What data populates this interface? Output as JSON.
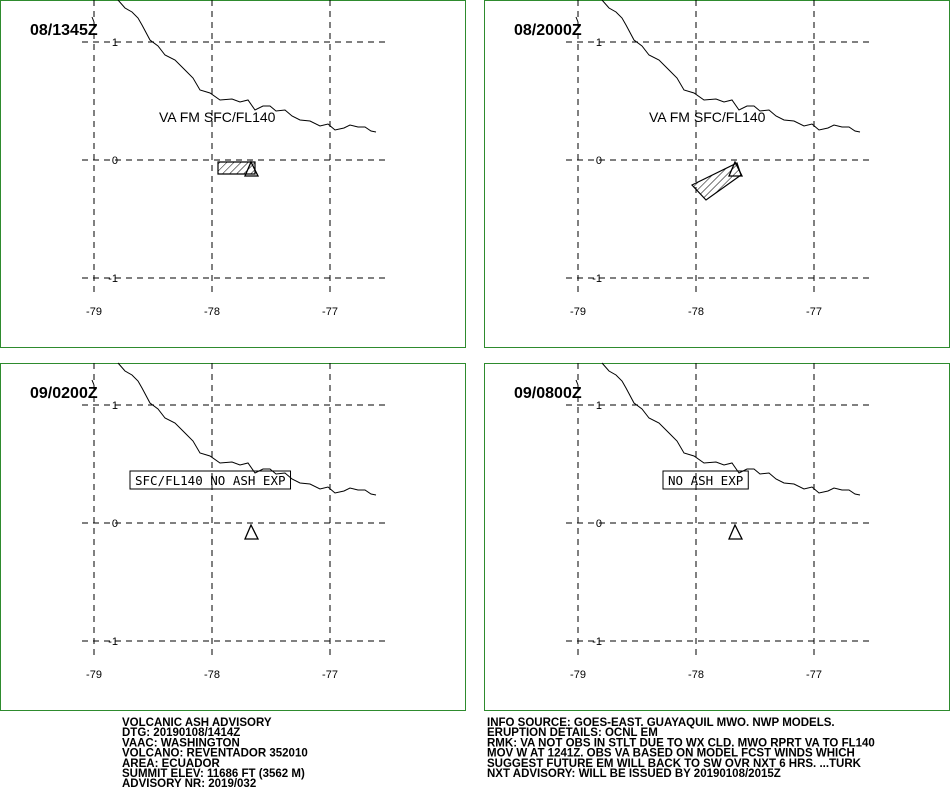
{
  "panels": [
    {
      "time": "08/1345Z",
      "label": "VA FM SFC/FL140"
    },
    {
      "time": "08/2000Z",
      "label": "VA FM SFC/FL140"
    },
    {
      "time": "09/0200Z",
      "label": "SFC/FL140 NO ASH EXP"
    },
    {
      "time": "09/0800Z",
      "label": "NO ASH EXP"
    }
  ],
  "lat_labels": [
    "1",
    "0",
    "-1"
  ],
  "lon_labels": [
    "-79",
    "-78",
    "-77"
  ],
  "advisory_left": [
    "VOLCANIC ASH ADVISORY",
    "DTG: 20190108/1414Z",
    "VAAC: WASHINGTON",
    "VOLCANO: REVENTADOR 352010",
    "AREA: ECUADOR",
    "SUMMIT ELEV: 11686 FT (3562 M)",
    "ADVISORY NR: 2019/032"
  ],
  "advisory_right": [
    "INFO SOURCE: GOES-EAST. GUAYAQUIL MWO. NWP MODELS.",
    "ERUPTION DETAILS: OCNL EM",
    "RMK: VA NOT OBS IN STLT DUE TO WX CLD. MWO RPRT VA TO FL140",
    "MOV W AT 1241Z. OBS VA BASED ON MODEL FCST WINDS WHICH",
    "SUGGEST FUTURE EM WILL BACK TO SW OVR NXT 6 HRS. ...TURK",
    "NXT ADVISORY: WILL BE ISSUED BY 20190108/2015Z"
  ]
}
